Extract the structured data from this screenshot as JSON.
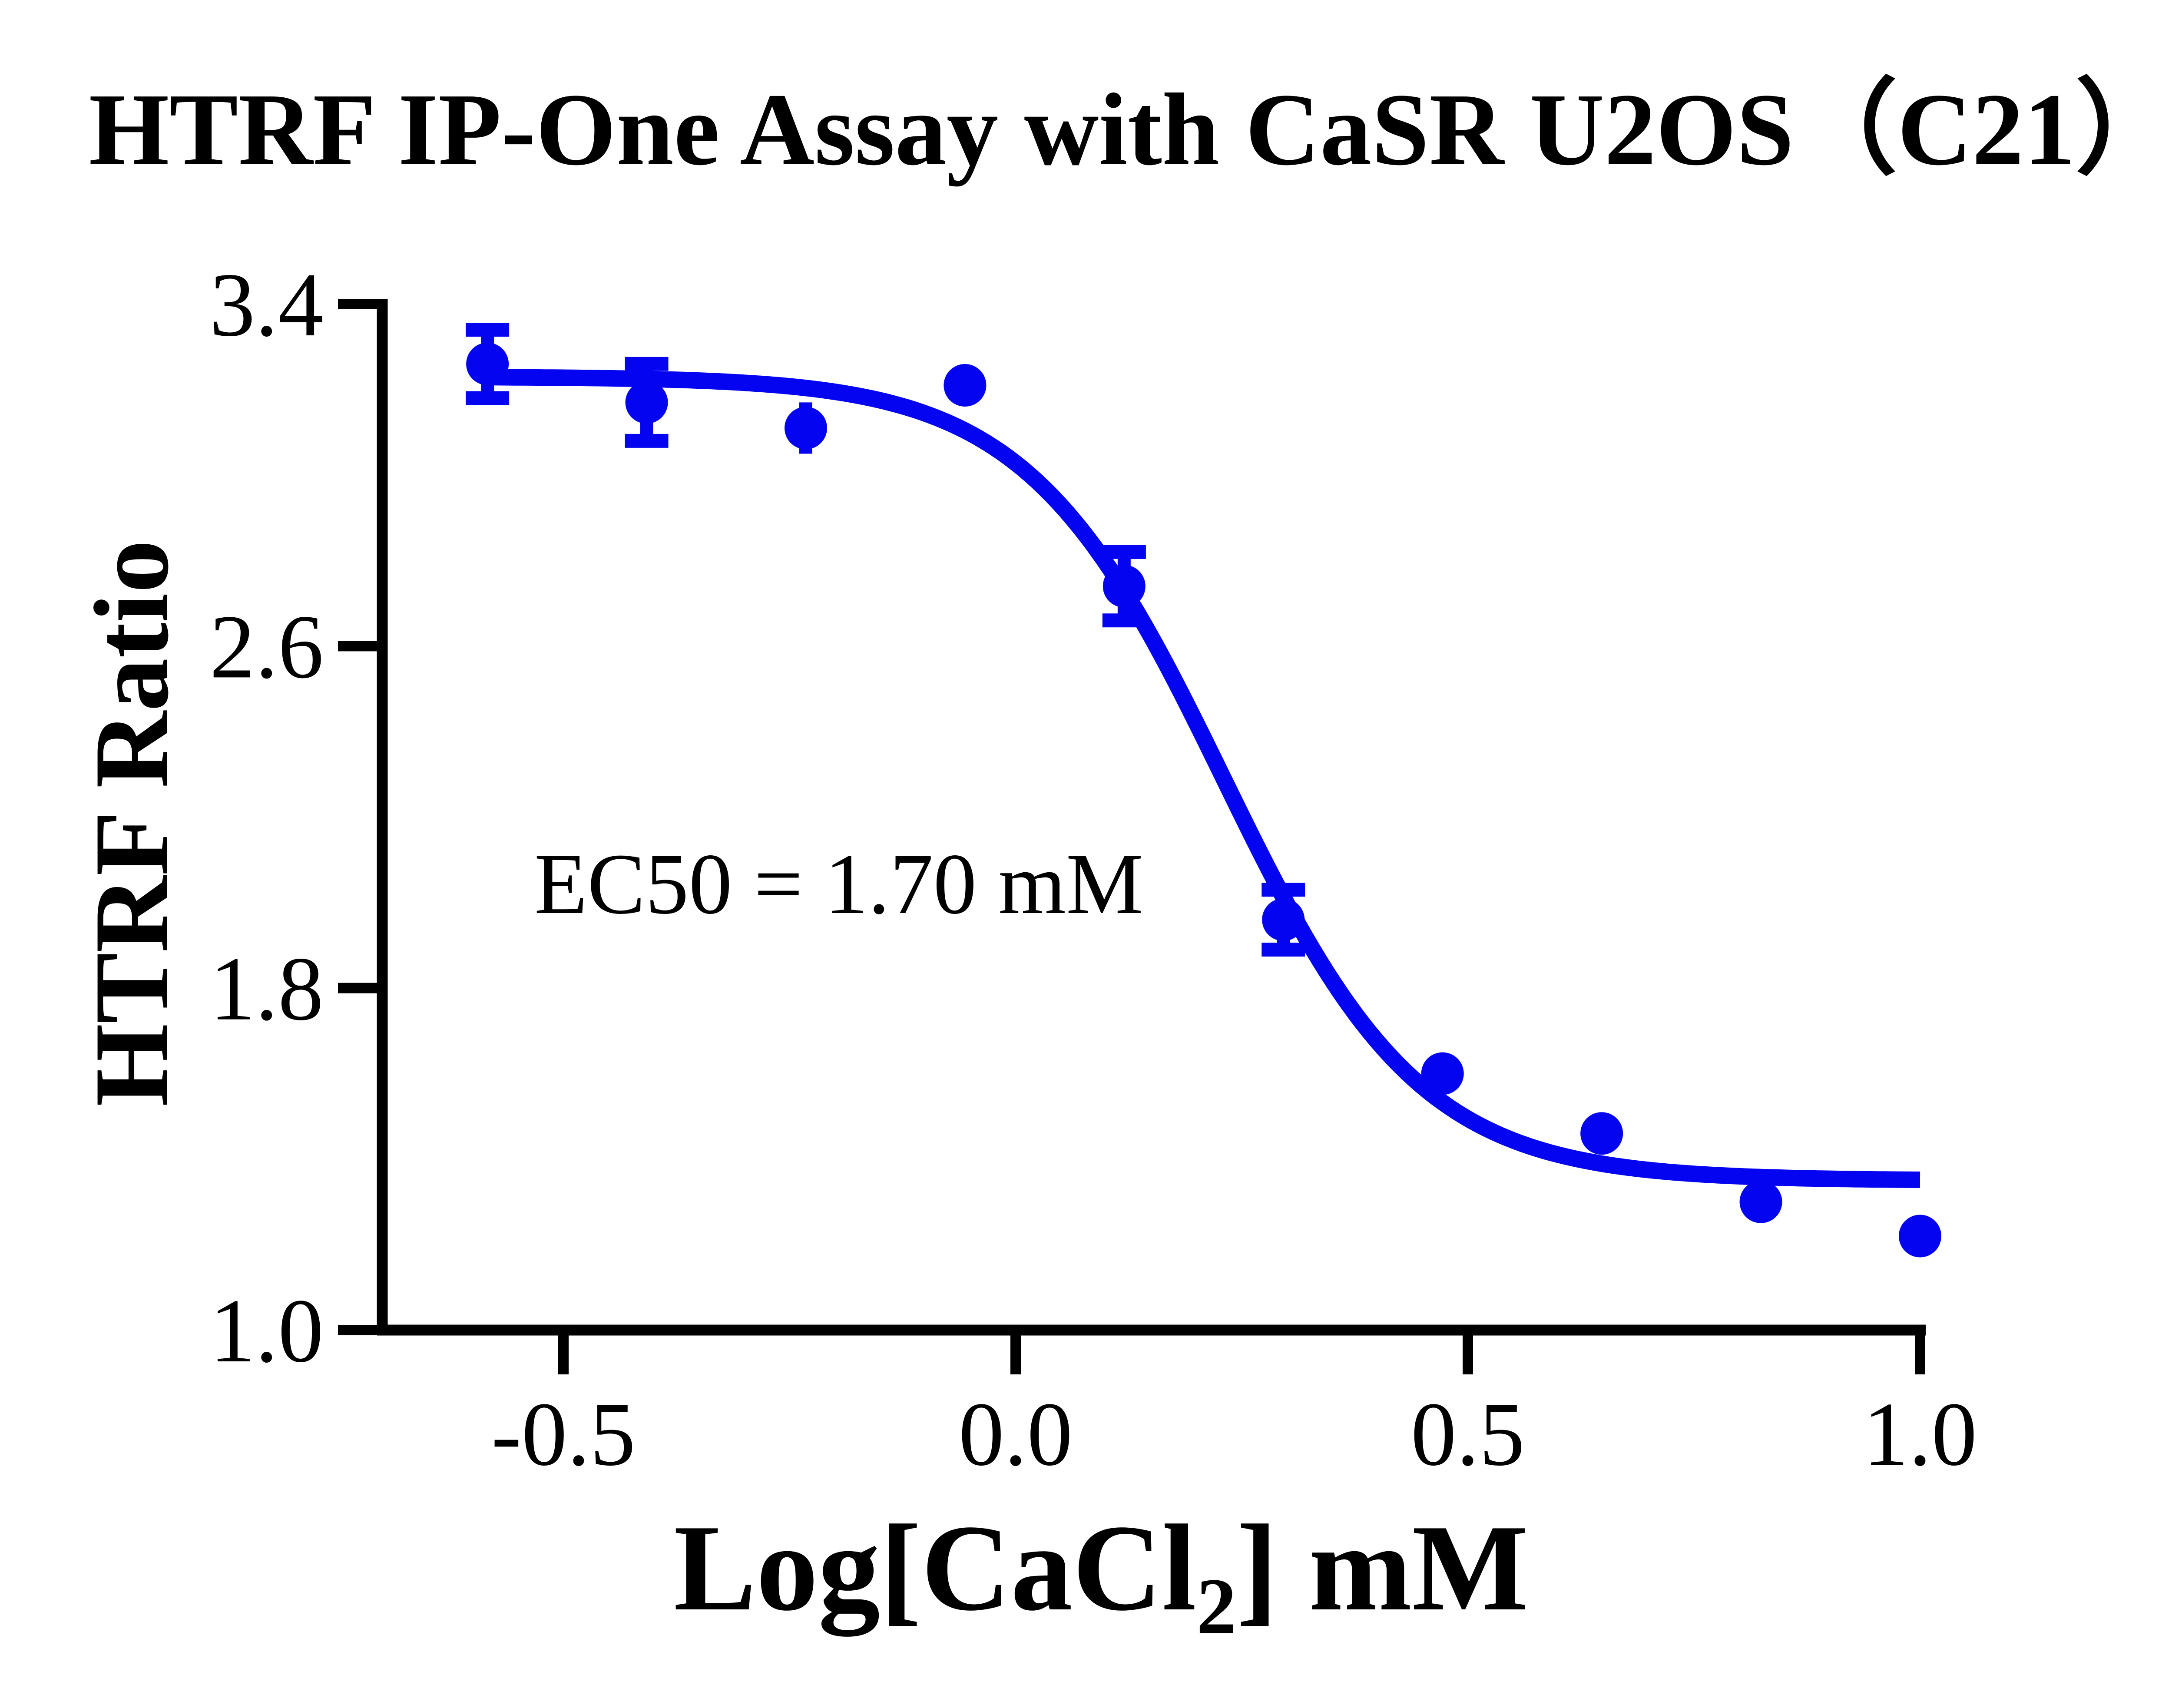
{
  "chart_data": {
    "type": "scatter",
    "title": "HTRF IP-One Assay with CaSR U2OS（C21）",
    "ylabel": "HTRF Ratio",
    "xlabel": {
      "pre": "Log[CaCl",
      "sub": "2",
      "post": "] mM"
    },
    "annotation": "EC50 = 1.70 mM",
    "x_ticks": [
      -0.5,
      0.0,
      0.5,
      1.0
    ],
    "x_tick_labels": [
      "-0.5",
      "0.0",
      "0.5",
      "1.0"
    ],
    "y_ticks": [
      3.4,
      2.6,
      1.8,
      1.0
    ],
    "y_tick_labels": [
      "3.4",
      "2.6",
      "1.8",
      "1.0"
    ],
    "xlim": [
      -0.7,
      1.01
    ],
    "ylim": [
      1.0,
      3.4
    ],
    "grid": false,
    "legend": false,
    "series": [
      {
        "name": "CaSR U2OS (C21)",
        "color": "#0404F0",
        "points": [
          {
            "x": -0.584,
            "y": 3.26,
            "err": 0.08,
            "caps": true
          },
          {
            "x": -0.408,
            "y": 3.17,
            "err": 0.09,
            "caps": true
          },
          {
            "x": -0.232,
            "y": 3.11,
            "err": 0.06,
            "caps": false
          },
          {
            "x": -0.056,
            "y": 3.21,
            "err": 0,
            "caps": false
          },
          {
            "x": 0.12,
            "y": 2.74,
            "err": 0.08,
            "caps": true
          },
          {
            "x": 0.296,
            "y": 1.96,
            "err": 0.07,
            "caps": true
          },
          {
            "x": 0.472,
            "y": 1.6,
            "err": 0,
            "caps": false
          },
          {
            "x": 0.648,
            "y": 1.46,
            "err": 0,
            "caps": false
          },
          {
            "x": 0.824,
            "y": 1.3,
            "err": 0,
            "caps": false
          },
          {
            "x": 1.0,
            "y": 1.22,
            "err": 0,
            "caps": false
          }
        ],
        "fit": {
          "model": "4PL sigmoid (decreasing)",
          "top": 3.23,
          "bottom": 1.35,
          "logEC50": 0.23,
          "EC50_mM": 1.7,
          "hillslope": 4.0,
          "x_start": -0.584,
          "x_end": 1.0
        }
      }
    ]
  },
  "colors": {
    "curve": "#0404F0",
    "axis": "#000000",
    "text": "#000000",
    "background": "#FFFFFF"
  }
}
